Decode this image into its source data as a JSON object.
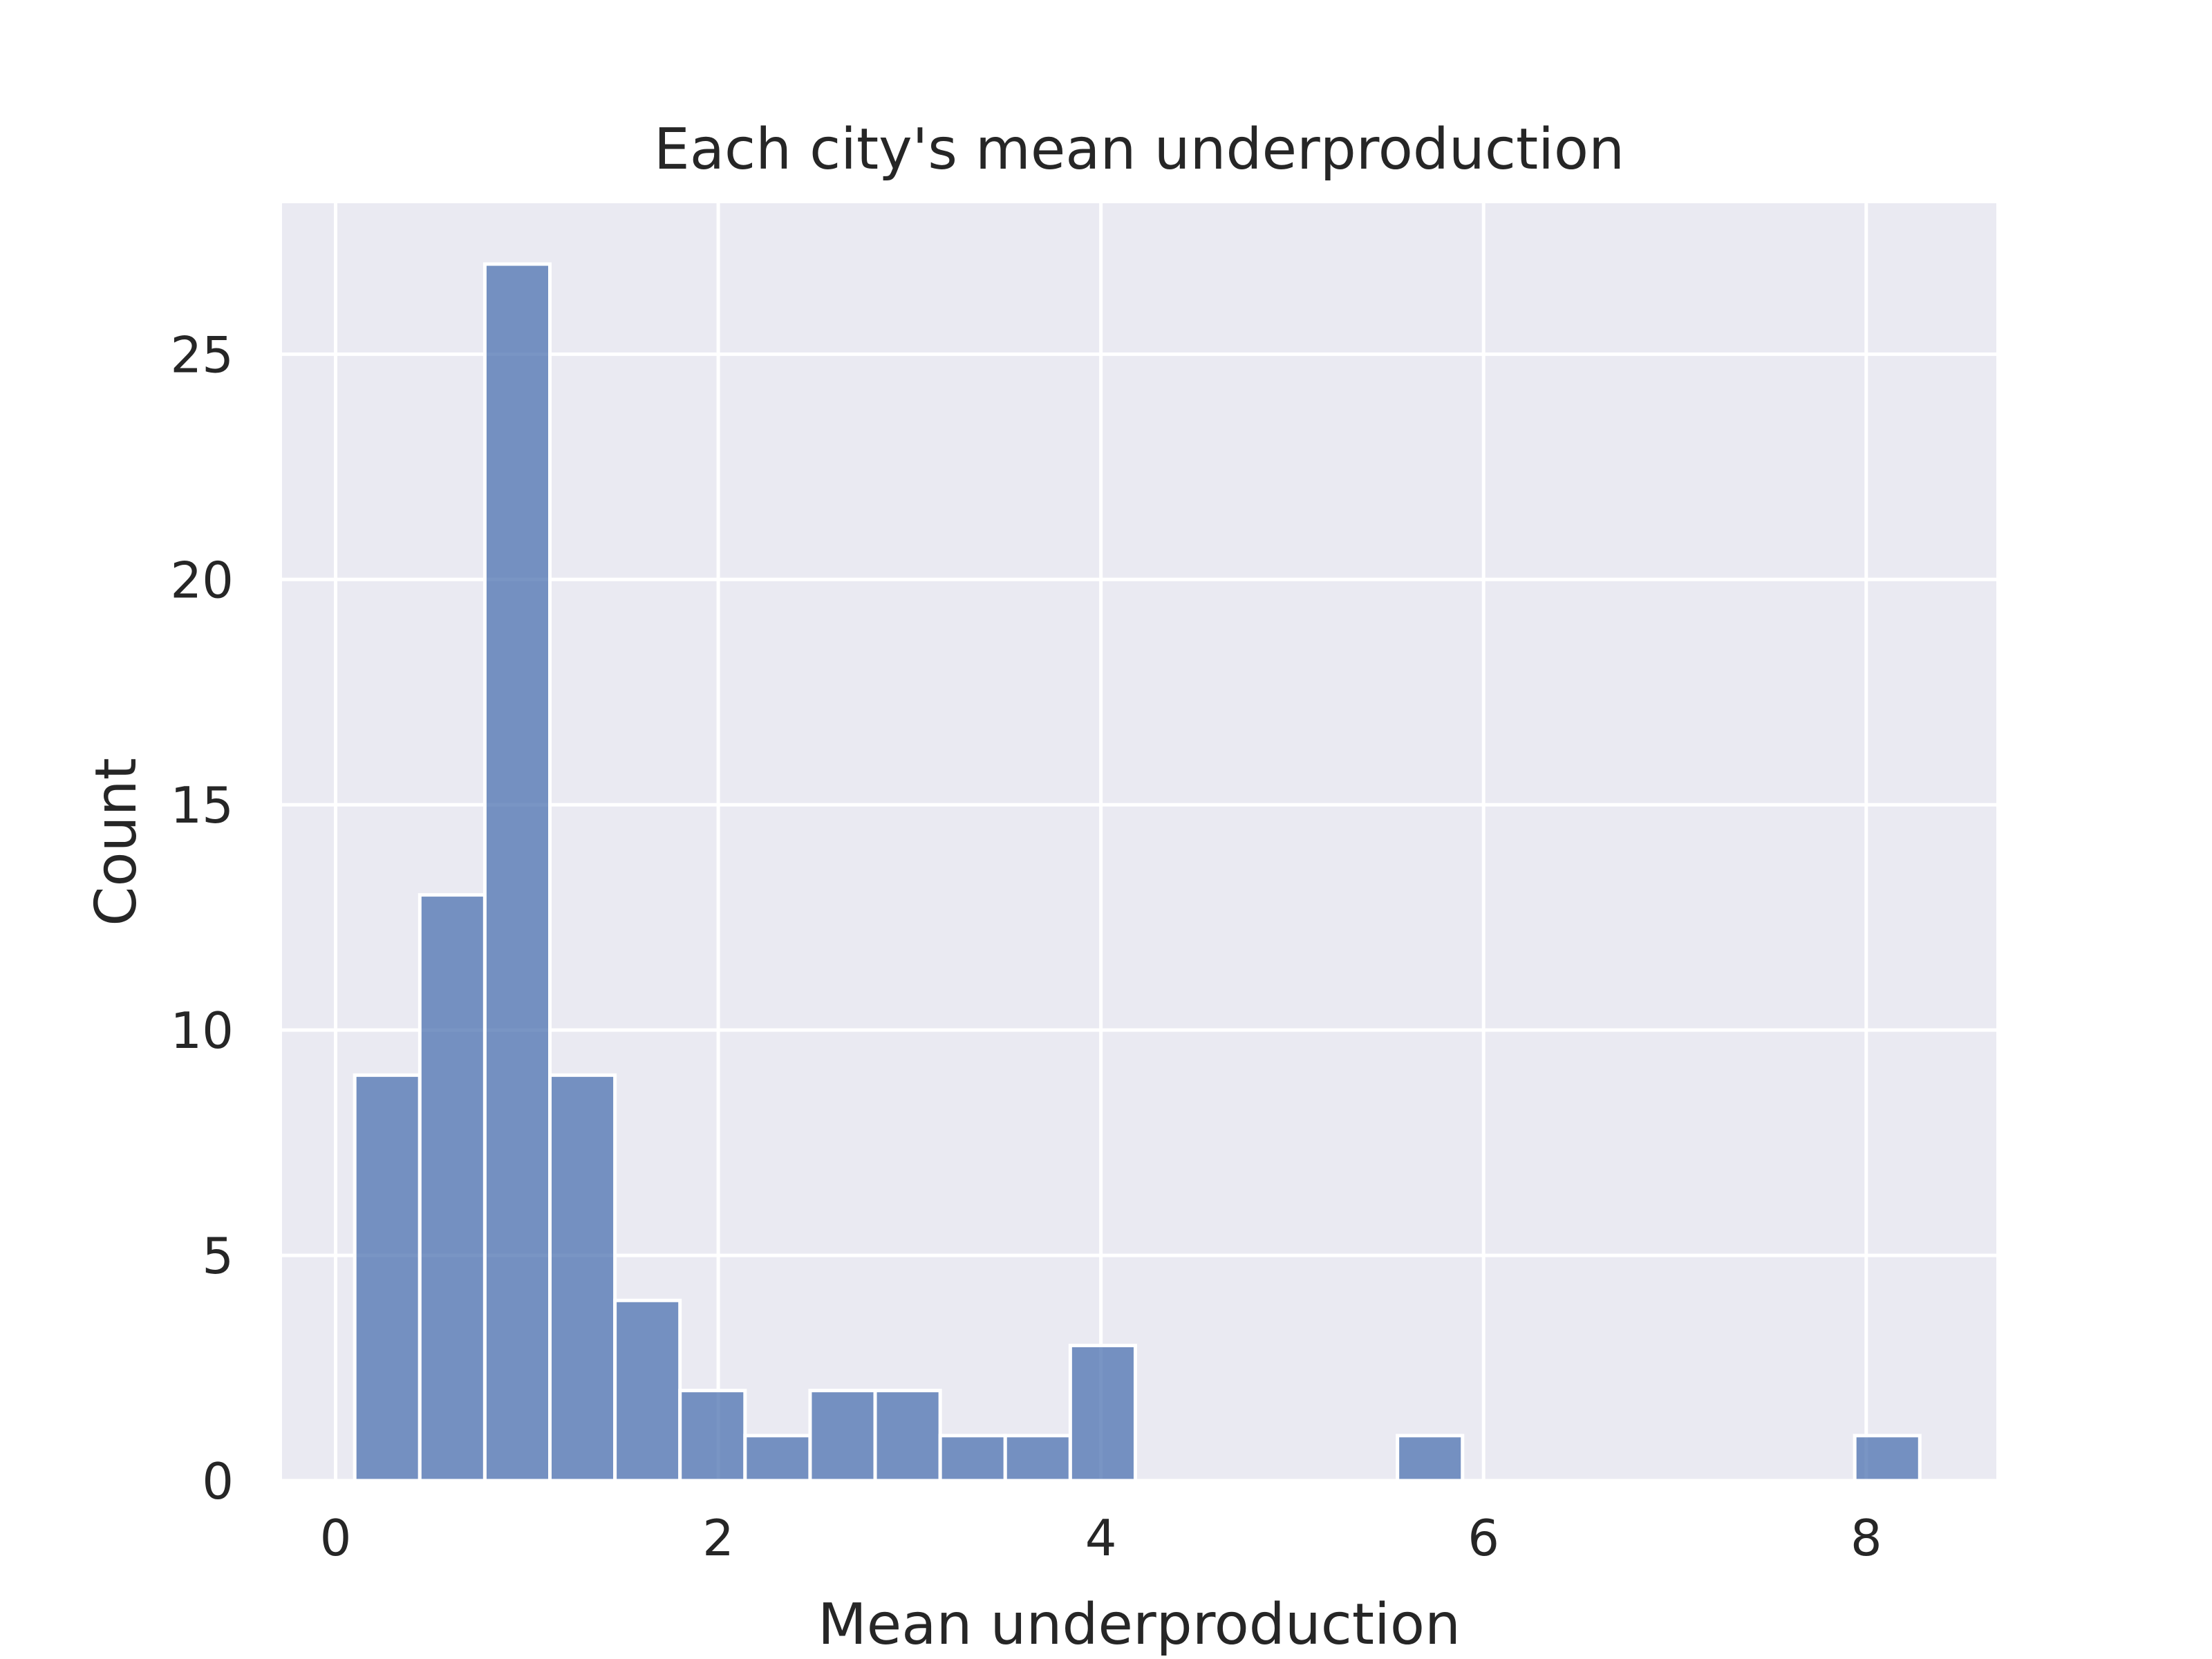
{
  "chart_data": {
    "type": "bar",
    "subtype": "histogram",
    "title": "Each city's mean underproduction",
    "xlabel": "Mean underproduction",
    "ylabel": "Count",
    "xlim": [
      -0.28,
      8.68
    ],
    "ylim": [
      0,
      28.35
    ],
    "xticks": [
      0,
      2,
      4,
      6,
      8
    ],
    "yticks": [
      0,
      5,
      10,
      15,
      20,
      25
    ],
    "grid": true,
    "colors": {
      "background": "#EAEAF2",
      "bar": "#4C72B0",
      "grid": "#FFFFFF",
      "text": "#262626"
    },
    "bin_width": 0.34,
    "bins": [
      {
        "x0": 0.1,
        "x1": 0.44,
        "count": 9
      },
      {
        "x0": 0.44,
        "x1": 0.78,
        "count": 13
      },
      {
        "x0": 0.78,
        "x1": 1.12,
        "count": 27
      },
      {
        "x0": 1.12,
        "x1": 1.46,
        "count": 9
      },
      {
        "x0": 1.46,
        "x1": 1.8,
        "count": 4
      },
      {
        "x0": 1.8,
        "x1": 2.14,
        "count": 2
      },
      {
        "x0": 2.14,
        "x1": 2.48,
        "count": 1
      },
      {
        "x0": 2.48,
        "x1": 2.82,
        "count": 2
      },
      {
        "x0": 2.82,
        "x1": 3.16,
        "count": 2
      },
      {
        "x0": 3.16,
        "x1": 3.5,
        "count": 1
      },
      {
        "x0": 3.5,
        "x1": 3.84,
        "count": 1
      },
      {
        "x0": 3.84,
        "x1": 4.18,
        "count": 3
      },
      {
        "x0": 5.55,
        "x1": 5.89,
        "count": 1
      },
      {
        "x0": 7.94,
        "x1": 8.28,
        "count": 1
      }
    ]
  }
}
